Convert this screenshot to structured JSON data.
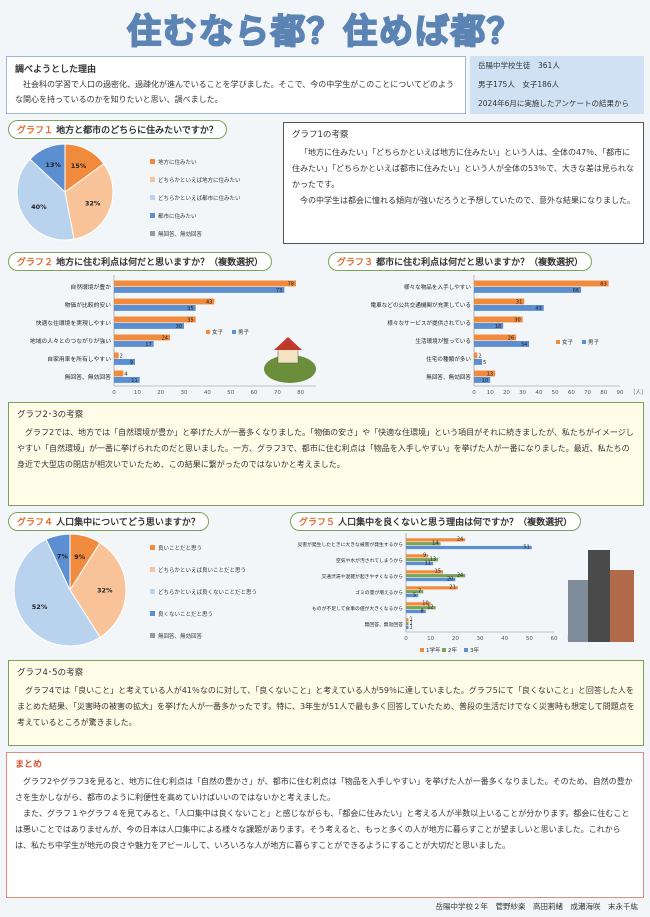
{
  "title": "住むなら都？住めば都？",
  "reason": {
    "heading": "調べようとした理由",
    "text": "社会科の学習で人口の過密化、過疎化が進んでいることを学びました。そこで、今の中学生がこのことについてどのような関心を持っているのかを知りたいと思い、調べました。"
  },
  "info": {
    "line1": "岳陽中学校生徒　361人",
    "line2": "男子175人　女子186人",
    "line3": "2024年6月に実施したアンケートの結果から"
  },
  "g1": {
    "label": "グラフ１",
    "title": "地方と都市のどちらに住みたいですか？",
    "legend": [
      "地方に住みたい",
      "どちらかといえば地方に住みたい",
      "どちらかといえば都市に住みたい",
      "都市に住みたい",
      "無回答、無効回答"
    ]
  },
  "g1c": {
    "heading": "グラフ1の考察",
    "p1": "「地方に住みたい」「どちらかといえば地方に住みたい」という人は、全体の47％、「都市に住みたい」「どちらかといえば都市に住みたい」という人が全体の53％で、大きな差は見られなかったです。",
    "p2": "今の中学生は都会に憧れる傾向が強いだろうと予想していたので、意外な結果になりました。"
  },
  "g2": {
    "label": "グラフ２",
    "title": "地方に住む利点は何だと思いますか？（複数選択）",
    "unit": "［人］"
  },
  "g3": {
    "label": "グラフ３",
    "title": "都市に住む利点は何だと思いますか？（複数選択）",
    "unit": "［人］"
  },
  "g23c": {
    "heading": "グラフ2･3の考察",
    "text": "グラフ2では、地方では「自然環境が豊か」と挙げた人が一番多くなりました。「物価の安さ」や「快適な住環境」という項目がそれに続きましたが、私たちがイメージしやすい「自然環境」が一番に挙げられたのだと思いました。一方、グラフ3で、都市に住む利点は「物品を入手しやすい」を挙げた人が一番になりました。最近、私たちの身近で大型店の閉店が相次いでいたため、この結果に繋がったのではないかと考えました。"
  },
  "g4": {
    "label": "グラフ４",
    "title": "人口集中についてどう思いますか？",
    "legend": [
      "良いことだと思う",
      "どちらかといえば良いことだと思う",
      "どちらかといえば良くないことだと思う",
      "良くないことだと思う",
      "無回答、無効回答"
    ]
  },
  "g5": {
    "label": "グラフ５",
    "title": "人口集中を良くないと思う理由は何ですか？（複数選択）",
    "unit": "［人］",
    "legend": [
      "1学年",
      "2年",
      "3年"
    ]
  },
  "g45c": {
    "heading": "グラフ4･5の考察",
    "text": "グラフ4では「良いこと」と考えている人が41％なのに対して、「良くないこと」と考えている人が59％に達していました。グラフ5にて「良くないこと」と回答した人をまとめた結果、「災害時の被害の拡大」を挙げた人が一番多かったです。特に、3年生が51人で最も多く回答していたため、普段の生活だけでなく災害時も想定して問題点を考えているところが驚きました。"
  },
  "summary": {
    "heading": "まとめ",
    "p1": "グラフ2やグラフ3を見ると、地方に住む利点は「自然の豊かさ」が、都市に住む利点は「物品を入手しやすい」を挙げた人が一番多くなりました。そのため、自然の豊かさを生かしながら、都市のように利便性を高めていけばいいのではないかと考えました。",
    "p2": "また、グラフ１やグラフ４を見てみると、「人口集中は良くないこと」と感じながらも、「都会に住みたい」と考える人が半数以上いることが分かります。都会に住むことは悪いことではありませんが、今の日本は人口集中による様々な課題があります。そう考えると、もっと多くの人が地方に暮らすことが望ましいと思いました。これからは、私たち中学生が地元の良さや魅力をアピールして、いろいろな人が地方に暮らすことができるようにすることが大切だと思いました。"
  },
  "footer": "岳陽中学校２年　菅野紗楽　高田莉緒　成瀬海咲　末永千紘",
  "chart_data": [
    {
      "type": "pie",
      "title": "地方と都市のどちらに住みたいですか？",
      "categories": [
        "地方に住みたい",
        "どちらかといえば地方に住みたい",
        "どちらかといえば都市に住みたい",
        "都市に住みたい",
        "無回答、無効回答"
      ],
      "values": [
        15,
        32,
        40,
        13,
        0
      ],
      "colors": [
        "#f08a3c",
        "#f9c39a",
        "#b9d3ee",
        "#5b8fd1",
        "#9a9a9a"
      ]
    },
    {
      "type": "bar",
      "title": "地方に住む利点は何だと思いますか？（複数選択）",
      "categories": [
        "自然環境が豊か",
        "物価が比較的安い",
        "快適な住環境を実現しやすい",
        "地域の人々とのつながりが強い",
        "自家用車を所有しやすい",
        "無回答、無効回答"
      ],
      "series": [
        {
          "name": "女子",
          "values": [
            78,
            43,
            35,
            24,
            2,
            4
          ],
          "color": "#f08a3c"
        },
        {
          "name": "男子",
          "values": [
            73,
            35,
            30,
            17,
            9,
            11
          ],
          "color": "#5b8fd1"
        }
      ],
      "xlim": [
        0,
        90
      ],
      "xticks": [
        0,
        10,
        20,
        30,
        40,
        50,
        60,
        70,
        80,
        90
      ],
      "xlabel": "［人］"
    },
    {
      "type": "bar",
      "title": "都市に住む利点は何だと思いますか？（複数選択）",
      "categories": [
        "様々な物品を入手しやすい",
        "電車などの公共交通機関が充実している",
        "様々なサービスが提供されている",
        "生活環境が整っている",
        "住宅の種類が多い",
        "無回答、無効回答"
      ],
      "series": [
        {
          "name": "女子",
          "values": [
            83,
            31,
            30,
            26,
            2,
            13
          ],
          "color": "#f08a3c"
        },
        {
          "name": "男子",
          "values": [
            66,
            43,
            18,
            34,
            5,
            10
          ],
          "color": "#5b8fd1"
        }
      ],
      "xlim": [
        0,
        90
      ],
      "xticks": [
        0,
        10,
        20,
        30,
        40,
        50,
        60,
        70,
        80,
        90
      ],
      "xlabel": "［人］"
    },
    {
      "type": "pie",
      "title": "人口集中についてどう思いますか？",
      "categories": [
        "良いことだと思う",
        "どちらかといえば良いことだと思う",
        "どちらかといえば良くないことだと思う",
        "良くないことだと思う",
        "無回答、無効回答"
      ],
      "values": [
        9,
        32,
        52,
        7,
        0
      ],
      "colors": [
        "#f08a3c",
        "#f9c39a",
        "#b9d3ee",
        "#5b8fd1",
        "#9a9a9a"
      ]
    },
    {
      "type": "bar",
      "title": "人口集中を良くないと思う理由は何ですか？（複数選択）",
      "categories": [
        "災害が発生したときに大きな被害が発生するから",
        "空気や水が汚されてしまうから",
        "交通渋滞や混雑が起きやすくなるから",
        "ゴミの量が増えるから",
        "ものが不足して食事の値が大きくなるから",
        "無回答、無効回答"
      ],
      "series": [
        {
          "name": "1学年",
          "values": [
            24,
            9,
            15,
            21,
            10,
            1
          ],
          "color": "#f08a3c"
        },
        {
          "name": "2年",
          "values": [
            14,
            13,
            24,
            7,
            12,
            1
          ],
          "color": "#7aa35a"
        },
        {
          "name": "3年",
          "values": [
            51,
            11,
            20,
            5,
            8,
            1
          ],
          "color": "#5b8fd1"
        }
      ],
      "xlim": [
        0,
        60
      ],
      "xticks": [
        0,
        10,
        20,
        30,
        40,
        50,
        60
      ],
      "xlabel": "［人］"
    }
  ]
}
